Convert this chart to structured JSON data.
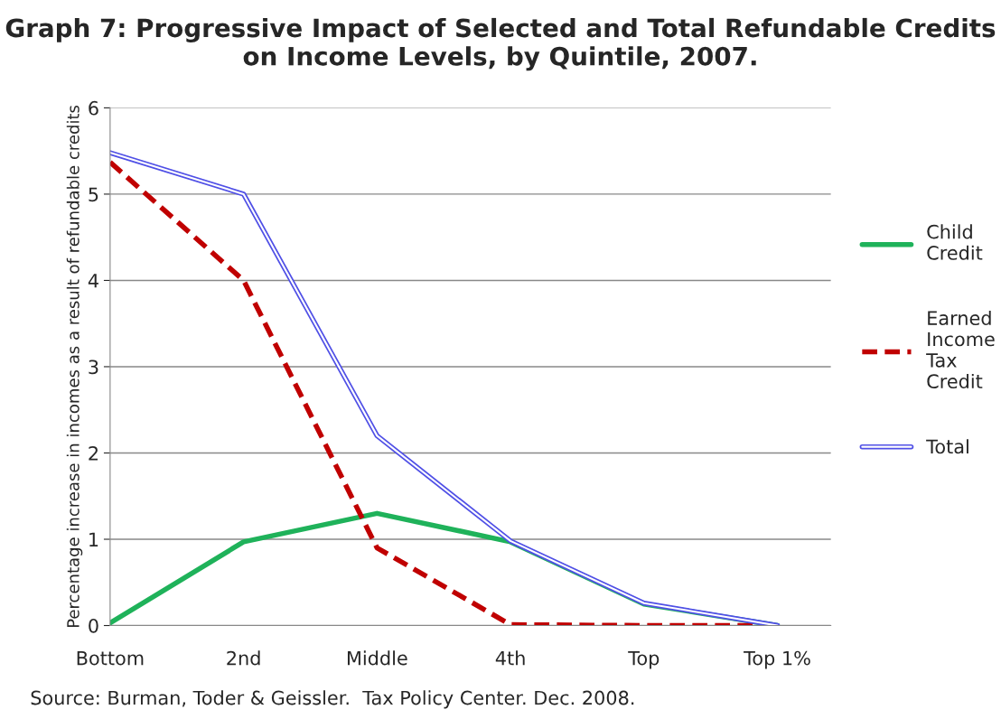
{
  "chart_data": {
    "type": "line",
    "title": "Graph 7: Progressive Impact of Selected and Total Refundable Credits on Income Levels, by Quintile, 2007.",
    "ylabel": "Percentage increase in incomes as a result of refundable credits",
    "categories": [
      "Bottom",
      "2nd",
      "Middle",
      "4th",
      "Top",
      "Top 1%"
    ],
    "series": [
      {
        "name": "Child Credit",
        "color": "#1fb25a",
        "line_style": "solid",
        "values": [
          0.03,
          0.97,
          1.3,
          0.97,
          0.25,
          0.0
        ]
      },
      {
        "name": "Earned Income Tax Credit",
        "color": "#c00000",
        "line_style": "dashed",
        "values": [
          5.37,
          4.0,
          0.9,
          0.01,
          0.0,
          0.0
        ]
      },
      {
        "name": "Total",
        "color": "#5050e6",
        "line_style": "solid",
        "values": [
          5.48,
          5.0,
          2.2,
          0.98,
          0.26,
          0.0
        ]
      }
    ],
    "ylim": [
      0,
      6
    ],
    "yticks": [
      0,
      1,
      2,
      3,
      4,
      5,
      6
    ],
    "grid": "y",
    "legend": "right",
    "marker": "none",
    "annotations": [
      "Source: Burman, Toder & Geissler.  Tax Policy Center. Dec. 2008."
    ]
  }
}
